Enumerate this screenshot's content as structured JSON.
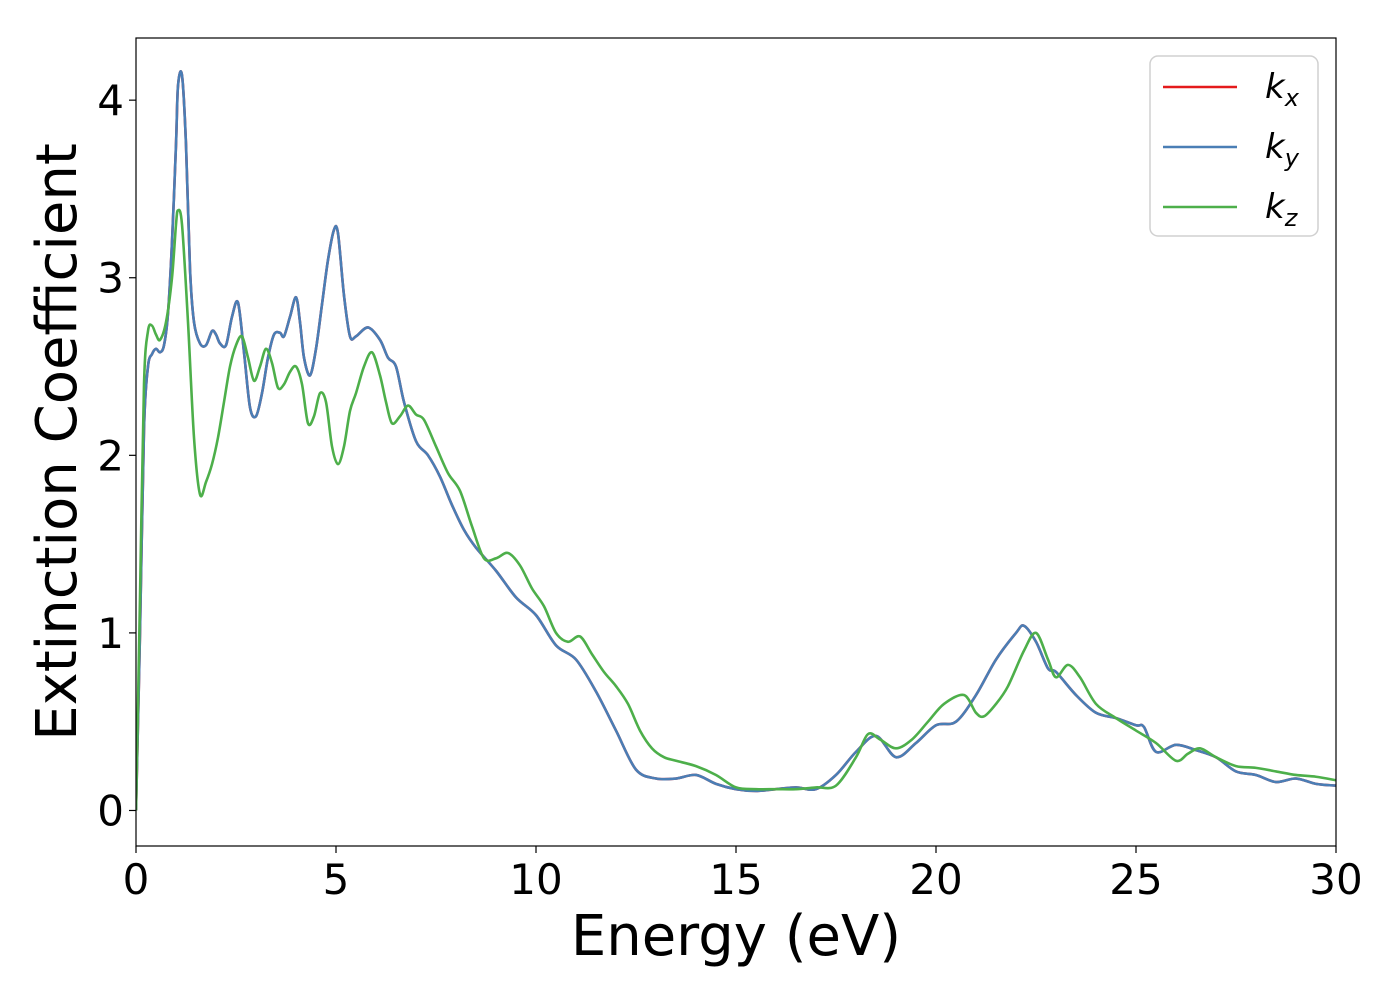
{
  "chart_data": {
    "type": "line",
    "title": "",
    "xlabel": "Energy (eV)",
    "ylabel": "Extinction Coefficient",
    "xlim": [
      0,
      30
    ],
    "ylim": [
      -0.2,
      4.35
    ],
    "xticks": [
      0,
      5,
      10,
      15,
      20,
      25,
      30
    ],
    "yticks": [
      0,
      1,
      2,
      3,
      4
    ],
    "grid": false,
    "legend_position": "top-right",
    "series": [
      {
        "name": "k",
        "subscript": "x",
        "color": "#e41a1c",
        "x": [
          0,
          0.1,
          0.2,
          0.3,
          0.4,
          0.5,
          0.6,
          0.7,
          0.8,
          0.9,
          1.0,
          1.05,
          1.15,
          1.25,
          1.35,
          1.45,
          1.6,
          1.75,
          1.9,
          2.0,
          2.1,
          2.25,
          2.4,
          2.55,
          2.7,
          2.85,
          3.0,
          3.15,
          3.3,
          3.45,
          3.6,
          3.7,
          3.85,
          4.0,
          4.1,
          4.2,
          4.35,
          4.5,
          4.65,
          4.8,
          4.95,
          5.05,
          5.2,
          5.35,
          5.5,
          5.8,
          6.1,
          6.3,
          6.5,
          6.7,
          7.0,
          7.3,
          7.6,
          7.9,
          8.2,
          8.5,
          9.0,
          9.5,
          10.0,
          10.5,
          11.0,
          11.5,
          12.0,
          12.5,
          13.0,
          13.5,
          14.0,
          14.5,
          15.0,
          15.5,
          16.0,
          16.5,
          17.0,
          17.5,
          18.0,
          18.5,
          19.0,
          19.5,
          20.0,
          20.5,
          21.0,
          21.5,
          22.0,
          22.2,
          22.5,
          22.8,
          23.0,
          23.5,
          24.0,
          24.5,
          25.0,
          25.2,
          25.5,
          26.0,
          26.5,
          27.0,
          27.5,
          28.0,
          28.5,
          29.0,
          29.5,
          30.0
        ],
        "y": [
          0.0,
          1.0,
          2.15,
          2.5,
          2.57,
          2.6,
          2.58,
          2.62,
          2.8,
          3.2,
          3.75,
          4.08,
          4.14,
          3.75,
          3.05,
          2.75,
          2.63,
          2.62,
          2.7,
          2.68,
          2.63,
          2.62,
          2.78,
          2.86,
          2.58,
          2.27,
          2.22,
          2.35,
          2.55,
          2.68,
          2.69,
          2.67,
          2.78,
          2.89,
          2.75,
          2.55,
          2.45,
          2.6,
          2.85,
          3.1,
          3.27,
          3.25,
          2.9,
          2.67,
          2.67,
          2.72,
          2.65,
          2.55,
          2.5,
          2.3,
          2.08,
          2.0,
          1.88,
          1.72,
          1.58,
          1.48,
          1.35,
          1.2,
          1.1,
          0.93,
          0.85,
          0.67,
          0.45,
          0.23,
          0.18,
          0.18,
          0.2,
          0.15,
          0.12,
          0.11,
          0.12,
          0.13,
          0.12,
          0.2,
          0.33,
          0.42,
          0.3,
          0.38,
          0.48,
          0.5,
          0.65,
          0.85,
          1.0,
          1.04,
          0.95,
          0.8,
          0.78,
          0.65,
          0.55,
          0.52,
          0.48,
          0.47,
          0.33,
          0.37,
          0.34,
          0.3,
          0.22,
          0.2,
          0.16,
          0.18,
          0.15,
          0.14
        ]
      },
      {
        "name": "k",
        "subscript": "y",
        "color": "#4a7eb5",
        "x": [
          0,
          0.1,
          0.2,
          0.3,
          0.4,
          0.5,
          0.6,
          0.7,
          0.8,
          0.9,
          1.0,
          1.05,
          1.15,
          1.25,
          1.35,
          1.45,
          1.6,
          1.75,
          1.9,
          2.0,
          2.1,
          2.25,
          2.4,
          2.55,
          2.7,
          2.85,
          3.0,
          3.15,
          3.3,
          3.45,
          3.6,
          3.7,
          3.85,
          4.0,
          4.1,
          4.2,
          4.35,
          4.5,
          4.65,
          4.8,
          4.95,
          5.05,
          5.2,
          5.35,
          5.5,
          5.8,
          6.1,
          6.3,
          6.5,
          6.7,
          7.0,
          7.3,
          7.6,
          7.9,
          8.2,
          8.5,
          9.0,
          9.5,
          10.0,
          10.5,
          11.0,
          11.5,
          12.0,
          12.5,
          13.0,
          13.5,
          14.0,
          14.5,
          15.0,
          15.5,
          16.0,
          16.5,
          17.0,
          17.5,
          18.0,
          18.5,
          19.0,
          19.5,
          20.0,
          20.5,
          21.0,
          21.5,
          22.0,
          22.2,
          22.5,
          22.8,
          23.0,
          23.5,
          24.0,
          24.5,
          25.0,
          25.2,
          25.5,
          26.0,
          26.5,
          27.0,
          27.5,
          28.0,
          28.5,
          29.0,
          29.5,
          30.0
        ],
        "y": [
          0.0,
          1.0,
          2.15,
          2.5,
          2.57,
          2.6,
          2.58,
          2.62,
          2.8,
          3.2,
          3.75,
          4.08,
          4.14,
          3.75,
          3.05,
          2.75,
          2.63,
          2.62,
          2.7,
          2.68,
          2.63,
          2.62,
          2.78,
          2.86,
          2.58,
          2.27,
          2.22,
          2.35,
          2.55,
          2.68,
          2.69,
          2.67,
          2.78,
          2.89,
          2.75,
          2.55,
          2.45,
          2.6,
          2.85,
          3.1,
          3.27,
          3.25,
          2.9,
          2.67,
          2.67,
          2.72,
          2.65,
          2.55,
          2.5,
          2.3,
          2.08,
          2.0,
          1.88,
          1.72,
          1.58,
          1.48,
          1.35,
          1.2,
          1.1,
          0.93,
          0.85,
          0.67,
          0.45,
          0.23,
          0.18,
          0.18,
          0.2,
          0.15,
          0.12,
          0.11,
          0.12,
          0.13,
          0.12,
          0.2,
          0.33,
          0.42,
          0.3,
          0.38,
          0.48,
          0.5,
          0.65,
          0.85,
          1.0,
          1.04,
          0.95,
          0.8,
          0.78,
          0.65,
          0.55,
          0.52,
          0.48,
          0.47,
          0.33,
          0.37,
          0.34,
          0.3,
          0.22,
          0.2,
          0.16,
          0.18,
          0.15,
          0.14
        ]
      },
      {
        "name": "k",
        "subscript": "z",
        "color": "#4daf4a",
        "x": [
          0,
          0.1,
          0.2,
          0.3,
          0.4,
          0.5,
          0.6,
          0.75,
          0.9,
          1.0,
          1.05,
          1.15,
          1.3,
          1.45,
          1.6,
          1.75,
          1.9,
          2.05,
          2.2,
          2.35,
          2.5,
          2.65,
          2.8,
          2.95,
          3.1,
          3.25,
          3.4,
          3.55,
          3.7,
          3.85,
          4.0,
          4.15,
          4.3,
          4.45,
          4.6,
          4.75,
          4.9,
          5.05,
          5.2,
          5.35,
          5.5,
          5.7,
          5.9,
          6.1,
          6.25,
          6.4,
          6.6,
          6.8,
          7.0,
          7.2,
          7.5,
          7.8,
          8.1,
          8.4,
          8.7,
          9.0,
          9.3,
          9.6,
          9.9,
          10.2,
          10.5,
          10.8,
          11.1,
          11.4,
          11.7,
          12.0,
          12.3,
          12.6,
          12.9,
          13.2,
          13.5,
          14.0,
          14.5,
          15.0,
          15.5,
          16.0,
          16.5,
          17.0,
          17.5,
          18.0,
          18.3,
          18.6,
          19.0,
          19.4,
          19.8,
          20.2,
          20.7,
          21.0,
          21.2,
          21.5,
          21.8,
          22.2,
          22.5,
          22.8,
          23.0,
          23.3,
          23.6,
          24.0,
          24.5,
          25.0,
          25.5,
          26.0,
          26.3,
          26.6,
          27.0,
          27.5,
          28.0,
          28.5,
          29.0,
          29.5,
          30.0
        ],
        "y": [
          0.0,
          1.2,
          2.4,
          2.7,
          2.73,
          2.68,
          2.65,
          2.75,
          3.0,
          3.3,
          3.38,
          3.3,
          2.75,
          2.1,
          1.78,
          1.85,
          1.95,
          2.1,
          2.3,
          2.5,
          2.62,
          2.67,
          2.55,
          2.42,
          2.5,
          2.6,
          2.52,
          2.38,
          2.4,
          2.47,
          2.5,
          2.4,
          2.18,
          2.22,
          2.35,
          2.3,
          2.05,
          1.95,
          2.05,
          2.25,
          2.35,
          2.5,
          2.58,
          2.45,
          2.3,
          2.18,
          2.22,
          2.28,
          2.23,
          2.2,
          2.05,
          1.9,
          1.8,
          1.6,
          1.42,
          1.42,
          1.45,
          1.38,
          1.25,
          1.15,
          1.0,
          0.95,
          0.98,
          0.88,
          0.78,
          0.7,
          0.6,
          0.45,
          0.35,
          0.3,
          0.28,
          0.25,
          0.2,
          0.13,
          0.12,
          0.12,
          0.12,
          0.13,
          0.14,
          0.3,
          0.43,
          0.4,
          0.35,
          0.4,
          0.5,
          0.6,
          0.65,
          0.55,
          0.53,
          0.6,
          0.7,
          0.9,
          1.0,
          0.85,
          0.75,
          0.82,
          0.75,
          0.6,
          0.52,
          0.45,
          0.38,
          0.28,
          0.32,
          0.35,
          0.3,
          0.25,
          0.24,
          0.22,
          0.2,
          0.19,
          0.17
        ]
      }
    ]
  }
}
